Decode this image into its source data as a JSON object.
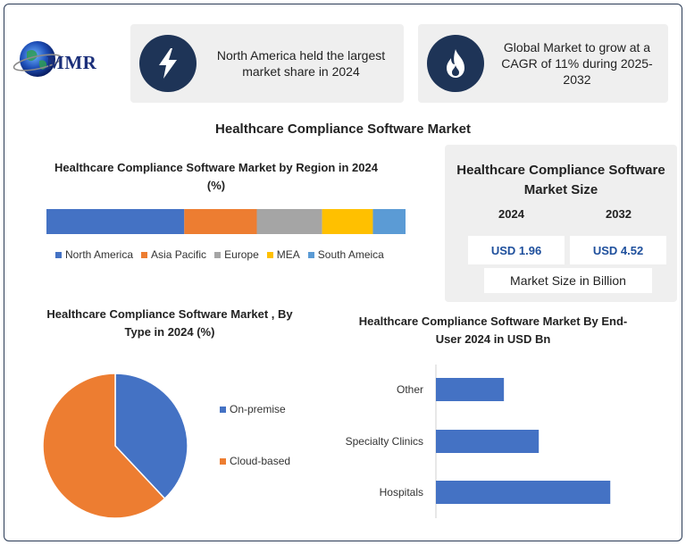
{
  "logo": {
    "text": "MMR"
  },
  "cards": [
    {
      "text": "North America held the largest market share in 2024",
      "icon": "lightning-bolt-icon"
    },
    {
      "text": "Global Market to grow at a CAGR of 11% during 2025-2032",
      "icon": "flame-icon"
    }
  ],
  "main_title": "Healthcare Compliance Software Market",
  "market_size": {
    "title": "Healthcare Compliance Software Market Size",
    "year_1": "2024",
    "year_2": "2032",
    "value_1": "USD 1.96",
    "value_2": "USD 4.52",
    "unit": "Market Size in Billion"
  },
  "colors": {
    "north_america": "#4472c4",
    "asia_pacific": "#ed7d31",
    "europe": "#a5a5a5",
    "mea": "#ffc000",
    "south_america": "#5b9bd5",
    "badge": "#1e3457",
    "bar": "#4472c4"
  },
  "chart_data": [
    {
      "type": "bar",
      "orientation": "horizontal-stacked-100",
      "title": "Healthcare Compliance Software Market by Region in 2024 (%)",
      "series": [
        {
          "name": "North America",
          "value": 38
        },
        {
          "name": "Asia Pacific",
          "value": 20
        },
        {
          "name": "Europe",
          "value": 18
        },
        {
          "name": "MEA",
          "value": 14
        },
        {
          "name": "South Ameica",
          "value": 9
        }
      ],
      "legend": "bottom"
    },
    {
      "type": "pie",
      "title": "Healthcare Compliance Software Market , By Type in 2024 (%)",
      "slices": [
        {
          "name": "On-premise",
          "value": 38
        },
        {
          "name": "Cloud-based",
          "value": 62
        }
      ],
      "legend": "right"
    },
    {
      "type": "bar",
      "orientation": "horizontal",
      "title": "Healthcare Compliance Software Market By End-User 2024 in USD Bn",
      "categories": [
        "Other",
        "Specialty Clinics",
        "Hospitals"
      ],
      "values": [
        0.39,
        0.59,
        1.0
      ],
      "xlim": [
        0,
        1.05
      ],
      "grid": false
    }
  ]
}
